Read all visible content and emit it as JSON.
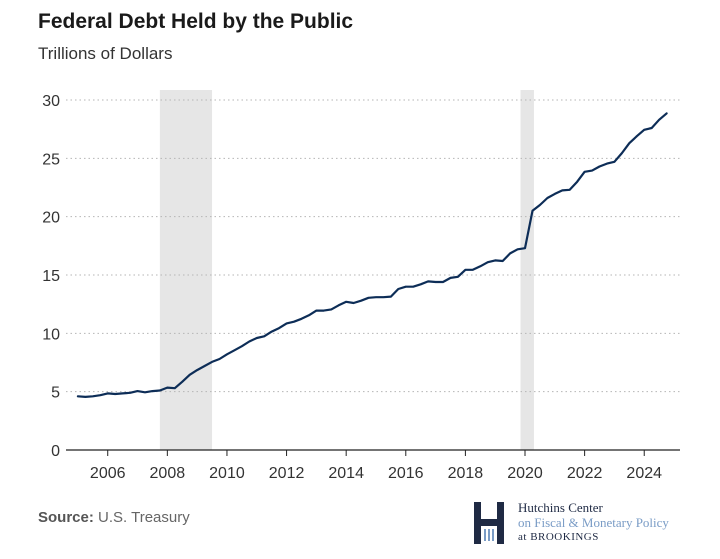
{
  "title": "Federal Debt Held by the Public",
  "subtitle": "Trillions of Dollars",
  "source": {
    "label": "Source:",
    "text": "U.S. Treasury"
  },
  "logo": {
    "line1": "Hutchins Center",
    "line2": "on Fiscal & Monetary Policy",
    "line3": "at BROOKINGS"
  },
  "chart_data": {
    "type": "line",
    "title": "Federal Debt Held by the Public",
    "ylabel": "Trillions of Dollars",
    "xlim": [
      2004.6,
      2025.2
    ],
    "ylim": [
      0,
      30
    ],
    "x_ticks": [
      2006,
      2008,
      2010,
      2012,
      2014,
      2016,
      2018,
      2020,
      2022,
      2024
    ],
    "y_ticks": [
      0,
      5,
      10,
      15,
      20,
      25,
      30
    ],
    "grid": "horizontal dotted",
    "line_color": "#0d2d57",
    "recession_color": "#e6e6e6",
    "recessions": [
      [
        2007.75,
        2009.5
      ],
      [
        2019.85,
        2020.3
      ]
    ],
    "series": [
      {
        "values": [
          [
            2005.0,
            4.6
          ],
          [
            2005.25,
            4.55
          ],
          [
            2005.5,
            4.6
          ],
          [
            2005.75,
            4.7
          ],
          [
            2006.0,
            4.85
          ],
          [
            2006.25,
            4.8
          ],
          [
            2006.5,
            4.85
          ],
          [
            2006.75,
            4.9
          ],
          [
            2007.0,
            5.05
          ],
          [
            2007.25,
            4.95
          ],
          [
            2007.5,
            5.05
          ],
          [
            2007.75,
            5.1
          ],
          [
            2008.0,
            5.35
          ],
          [
            2008.25,
            5.3
          ],
          [
            2008.5,
            5.85
          ],
          [
            2008.75,
            6.45
          ],
          [
            2009.0,
            6.85
          ],
          [
            2009.25,
            7.2
          ],
          [
            2009.5,
            7.55
          ],
          [
            2009.75,
            7.8
          ],
          [
            2010.0,
            8.2
          ],
          [
            2010.25,
            8.55
          ],
          [
            2010.5,
            8.9
          ],
          [
            2010.75,
            9.3
          ],
          [
            2011.0,
            9.6
          ],
          [
            2011.25,
            9.75
          ],
          [
            2011.5,
            10.15
          ],
          [
            2011.75,
            10.45
          ],
          [
            2012.0,
            10.85
          ],
          [
            2012.25,
            11.0
          ],
          [
            2012.5,
            11.25
          ],
          [
            2012.75,
            11.55
          ],
          [
            2013.0,
            11.95
          ],
          [
            2013.25,
            11.95
          ],
          [
            2013.5,
            12.05
          ],
          [
            2013.75,
            12.4
          ],
          [
            2014.0,
            12.7
          ],
          [
            2014.25,
            12.6
          ],
          [
            2014.5,
            12.8
          ],
          [
            2014.75,
            13.05
          ],
          [
            2015.0,
            13.1
          ],
          [
            2015.25,
            13.1
          ],
          [
            2015.5,
            13.15
          ],
          [
            2015.75,
            13.8
          ],
          [
            2016.0,
            14.0
          ],
          [
            2016.25,
            14.0
          ],
          [
            2016.5,
            14.2
          ],
          [
            2016.75,
            14.45
          ],
          [
            2017.0,
            14.4
          ],
          [
            2017.25,
            14.4
          ],
          [
            2017.5,
            14.75
          ],
          [
            2017.75,
            14.85
          ],
          [
            2018.0,
            15.45
          ],
          [
            2018.25,
            15.45
          ],
          [
            2018.5,
            15.75
          ],
          [
            2018.75,
            16.1
          ],
          [
            2019.0,
            16.25
          ],
          [
            2019.25,
            16.2
          ],
          [
            2019.5,
            16.85
          ],
          [
            2019.75,
            17.2
          ],
          [
            2020.0,
            17.3
          ],
          [
            2020.25,
            20.5
          ],
          [
            2020.5,
            21.0
          ],
          [
            2020.75,
            21.6
          ],
          [
            2021.0,
            21.95
          ],
          [
            2021.25,
            22.25
          ],
          [
            2021.5,
            22.3
          ],
          [
            2021.75,
            23.0
          ],
          [
            2022.0,
            23.85
          ],
          [
            2022.25,
            23.95
          ],
          [
            2022.5,
            24.3
          ],
          [
            2022.75,
            24.55
          ],
          [
            2023.0,
            24.7
          ],
          [
            2023.25,
            25.45
          ],
          [
            2023.5,
            26.3
          ],
          [
            2023.75,
            26.9
          ],
          [
            2024.0,
            27.45
          ],
          [
            2024.25,
            27.6
          ],
          [
            2024.5,
            28.3
          ],
          [
            2024.75,
            28.85
          ]
        ]
      }
    ]
  }
}
